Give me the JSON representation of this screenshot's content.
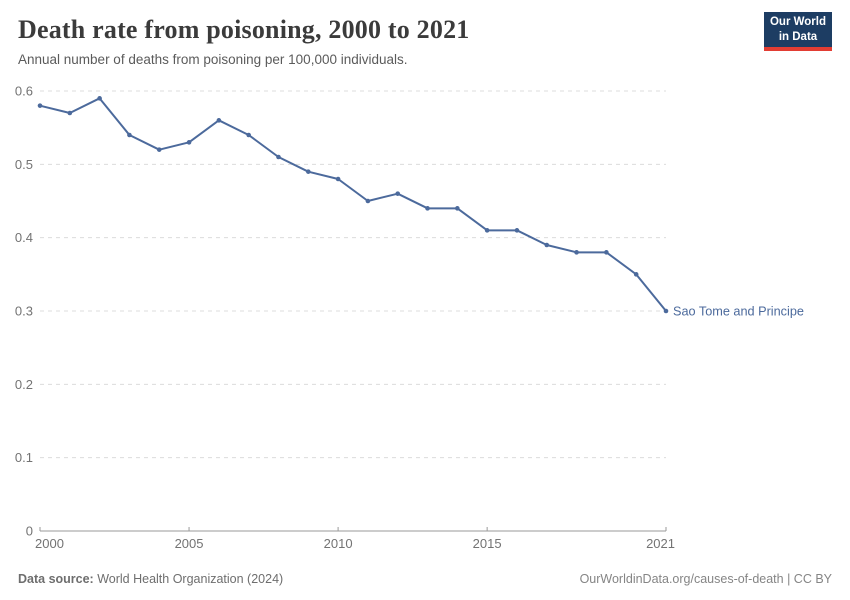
{
  "header": {
    "title": "Death rate from poisoning, 2000 to 2021",
    "subtitle": "Annual number of deaths from poisoning per 100,000 individuals.",
    "logo": {
      "line1": "Our World",
      "line2": "in Data",
      "bg_color": "#1d3d63",
      "accent_color": "#e23d33"
    }
  },
  "chart_data": {
    "type": "line",
    "title": "Death rate from poisoning, 2000 to 2021",
    "xlabel": "",
    "ylabel": "",
    "x": [
      2000,
      2001,
      2002,
      2003,
      2004,
      2005,
      2006,
      2007,
      2008,
      2009,
      2010,
      2011,
      2012,
      2013,
      2014,
      2015,
      2016,
      2017,
      2018,
      2019,
      2020,
      2021
    ],
    "series": [
      {
        "name": "Sao Tome and Principe",
        "color": "#4c6a9c",
        "values": [
          0.58,
          0.57,
          0.59,
          0.54,
          0.52,
          0.53,
          0.56,
          0.54,
          0.51,
          0.49,
          0.48,
          0.45,
          0.46,
          0.44,
          0.44,
          0.41,
          0.41,
          0.39,
          0.38,
          0.38,
          0.35,
          0.3
        ]
      }
    ],
    "ylim": [
      0,
      0.6
    ],
    "yticks": [
      0,
      0.1,
      0.2,
      0.3,
      0.4,
      0.5,
      0.6
    ],
    "xticks": [
      2000,
      2005,
      2010,
      2015,
      2021
    ],
    "grid": "horizontal-dashed",
    "legend": "end-of-line-label",
    "grid_color": "#dcdcdc",
    "axis_color": "#9a9a9a",
    "tick_label_color": "#737373"
  },
  "footer": {
    "source_label": "Data source:",
    "source_text": " World Health Organization (2024)",
    "link_text": "OurWorldinData.org/causes-of-death | CC BY"
  }
}
